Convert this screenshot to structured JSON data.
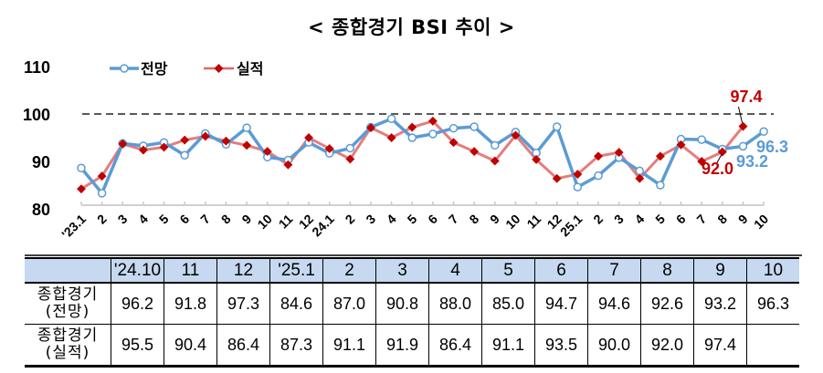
{
  "title": "< 종합경기 BSI 추이 >",
  "legend": {
    "series_1": "전망",
    "series_2": "실적"
  },
  "colors": {
    "forecast": "#5b9bd5",
    "actual": "#c00000",
    "actual_line": "#e06666",
    "reference_line": "#595959",
    "table_header": "#c6d9f0"
  },
  "annotations": [
    {
      "label": "97.4",
      "series": "실적",
      "point": "'25.9",
      "color": "#c00000"
    },
    {
      "label": "92.0",
      "series": "실적",
      "point": "'25.8",
      "color": "#c00000"
    },
    {
      "label": "93.2",
      "series": "전망",
      "point": "'25.9",
      "color": "#5b9bd5"
    },
    {
      "label": "96.3",
      "series": "전망",
      "point": "'25.10",
      "color": "#5b9bd5"
    }
  ],
  "chart_data": {
    "type": "line",
    "title": "< 종합경기 BSI 추이 >",
    "xlabel": "",
    "ylabel": "",
    "ylim": [
      80,
      110
    ],
    "yticks": [
      80,
      90,
      100,
      110
    ],
    "reference_line": 100,
    "grid": false,
    "legend_position": "top-left",
    "categories": [
      "'23.1",
      "2",
      "3",
      "4",
      "5",
      "6",
      "7",
      "8",
      "9",
      "10",
      "11",
      "12",
      "24.1",
      "2",
      "3",
      "4",
      "5",
      "6",
      "7",
      "8",
      "9",
      "10",
      "11",
      "12",
      "25.1",
      "2",
      "3",
      "4",
      "5",
      "6",
      "7",
      "8",
      "9",
      "10"
    ],
    "series": [
      {
        "name": "전망",
        "values": [
          88.6,
          83.3,
          93.8,
          93.3,
          94.0,
          91.3,
          95.9,
          93.6,
          97.1,
          90.9,
          90.3,
          94.0,
          91.7,
          92.8,
          97.2,
          99.0,
          95.0,
          95.8,
          97.0,
          97.3,
          93.4,
          96.2,
          91.8,
          97.3,
          84.6,
          87.0,
          90.8,
          88.0,
          85.0,
          94.7,
          94.6,
          92.6,
          93.2,
          96.3
        ]
      },
      {
        "name": "실적",
        "values": [
          84.2,
          86.9,
          93.7,
          92.4,
          93.0,
          94.5,
          95.3,
          94.3,
          93.4,
          92.1,
          89.3,
          95.0,
          92.7,
          90.5,
          97.1,
          95.0,
          97.2,
          98.5,
          94.0,
          92.1,
          90.1,
          95.5,
          90.4,
          86.4,
          87.3,
          91.1,
          91.9,
          86.4,
          91.1,
          93.5,
          90.0,
          92.0,
          97.4,
          null
        ]
      }
    ]
  },
  "table": {
    "headers": [
      "",
      "'24.10",
      "11",
      "12",
      "'25.1",
      "2",
      "3",
      "4",
      "5",
      "6",
      "7",
      "8",
      "9",
      "10"
    ],
    "rows": [
      {
        "label_line1": "종합경기",
        "label_line2": "(전망)",
        "values": [
          "96.2",
          "91.8",
          "97.3",
          "84.6",
          "87.0",
          "90.8",
          "88.0",
          "85.0",
          "94.7",
          "94.6",
          "92.6",
          "93.2",
          "96.3"
        ]
      },
      {
        "label_line1": "종합경기",
        "label_line2": "(실적)",
        "values": [
          "95.5",
          "90.4",
          "86.4",
          "87.3",
          "91.1",
          "91.9",
          "86.4",
          "91.1",
          "93.5",
          "90.0",
          "92.0",
          "97.4",
          ""
        ]
      }
    ]
  }
}
